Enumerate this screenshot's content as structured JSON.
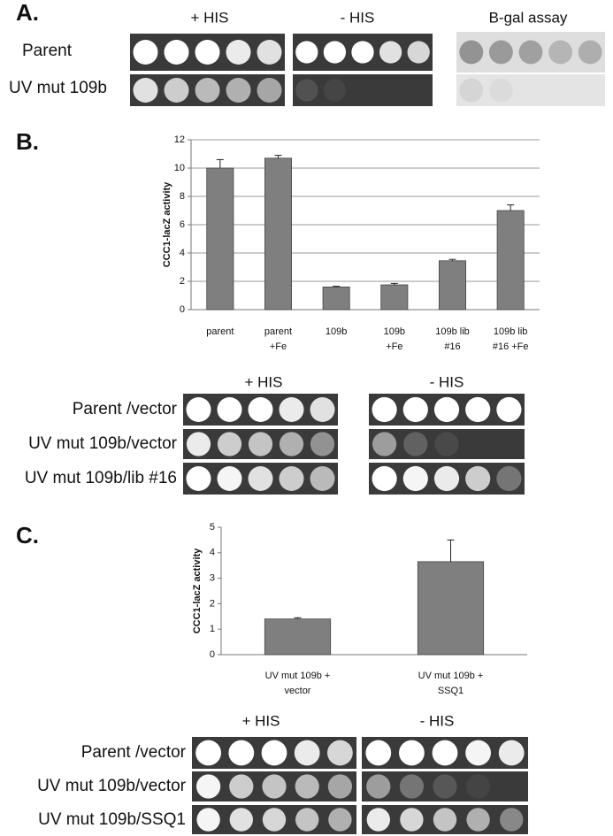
{
  "panel_a": {
    "label": "A.",
    "headers": [
      "+ HIS",
      "- HIS",
      "B-gal assay"
    ],
    "rows": [
      "Parent",
      "UV mut 109b"
    ]
  },
  "chart_data": [
    {
      "type": "bar",
      "ylabel": "CCC1-lacZ activity",
      "categories": [
        [
          "parent"
        ],
        [
          "parent",
          "+Fe"
        ],
        [
          "109b"
        ],
        [
          "109b",
          "+Fe"
        ],
        [
          "109b lib",
          "#16"
        ],
        [
          "109b lib",
          "#16 +Fe"
        ]
      ],
      "values": [
        10,
        10.7,
        1.6,
        1.75,
        3.45,
        7.0
      ],
      "errors": [
        0.6,
        0.2,
        0.05,
        0.1,
        0.1,
        0.4
      ],
      "color": "#7f7f7f",
      "ylim": [
        0,
        12
      ],
      "yticks": [
        0,
        2,
        4,
        6,
        8,
        10,
        12
      ],
      "grid": true
    },
    {
      "type": "bar",
      "ylabel": "CCC1-lacZ activity",
      "categories": [
        [
          "UV mut 109b +",
          "vector"
        ],
        [
          "UV mut 109b +",
          "SSQ1"
        ]
      ],
      "values": [
        1.4,
        3.65
      ],
      "errors": [
        0.05,
        0.85
      ],
      "color": "#7f7f7f",
      "ylim": [
        0,
        5
      ],
      "yticks": [
        0,
        1,
        2,
        3,
        4,
        5
      ],
      "grid": false
    }
  ],
  "panel_b": {
    "label": "B.",
    "headers": [
      "+ HIS",
      "- HIS"
    ],
    "rows": [
      "Parent /vector",
      "UV mut 109b/vector",
      "UV mut 109b/lib #16"
    ]
  },
  "panel_c": {
    "label": "C.",
    "headers": [
      "+ HIS",
      "- HIS"
    ],
    "rows": [
      "Parent /vector",
      "UV mut 109b/vector",
      "UV mut 109b/SSQ1"
    ]
  }
}
